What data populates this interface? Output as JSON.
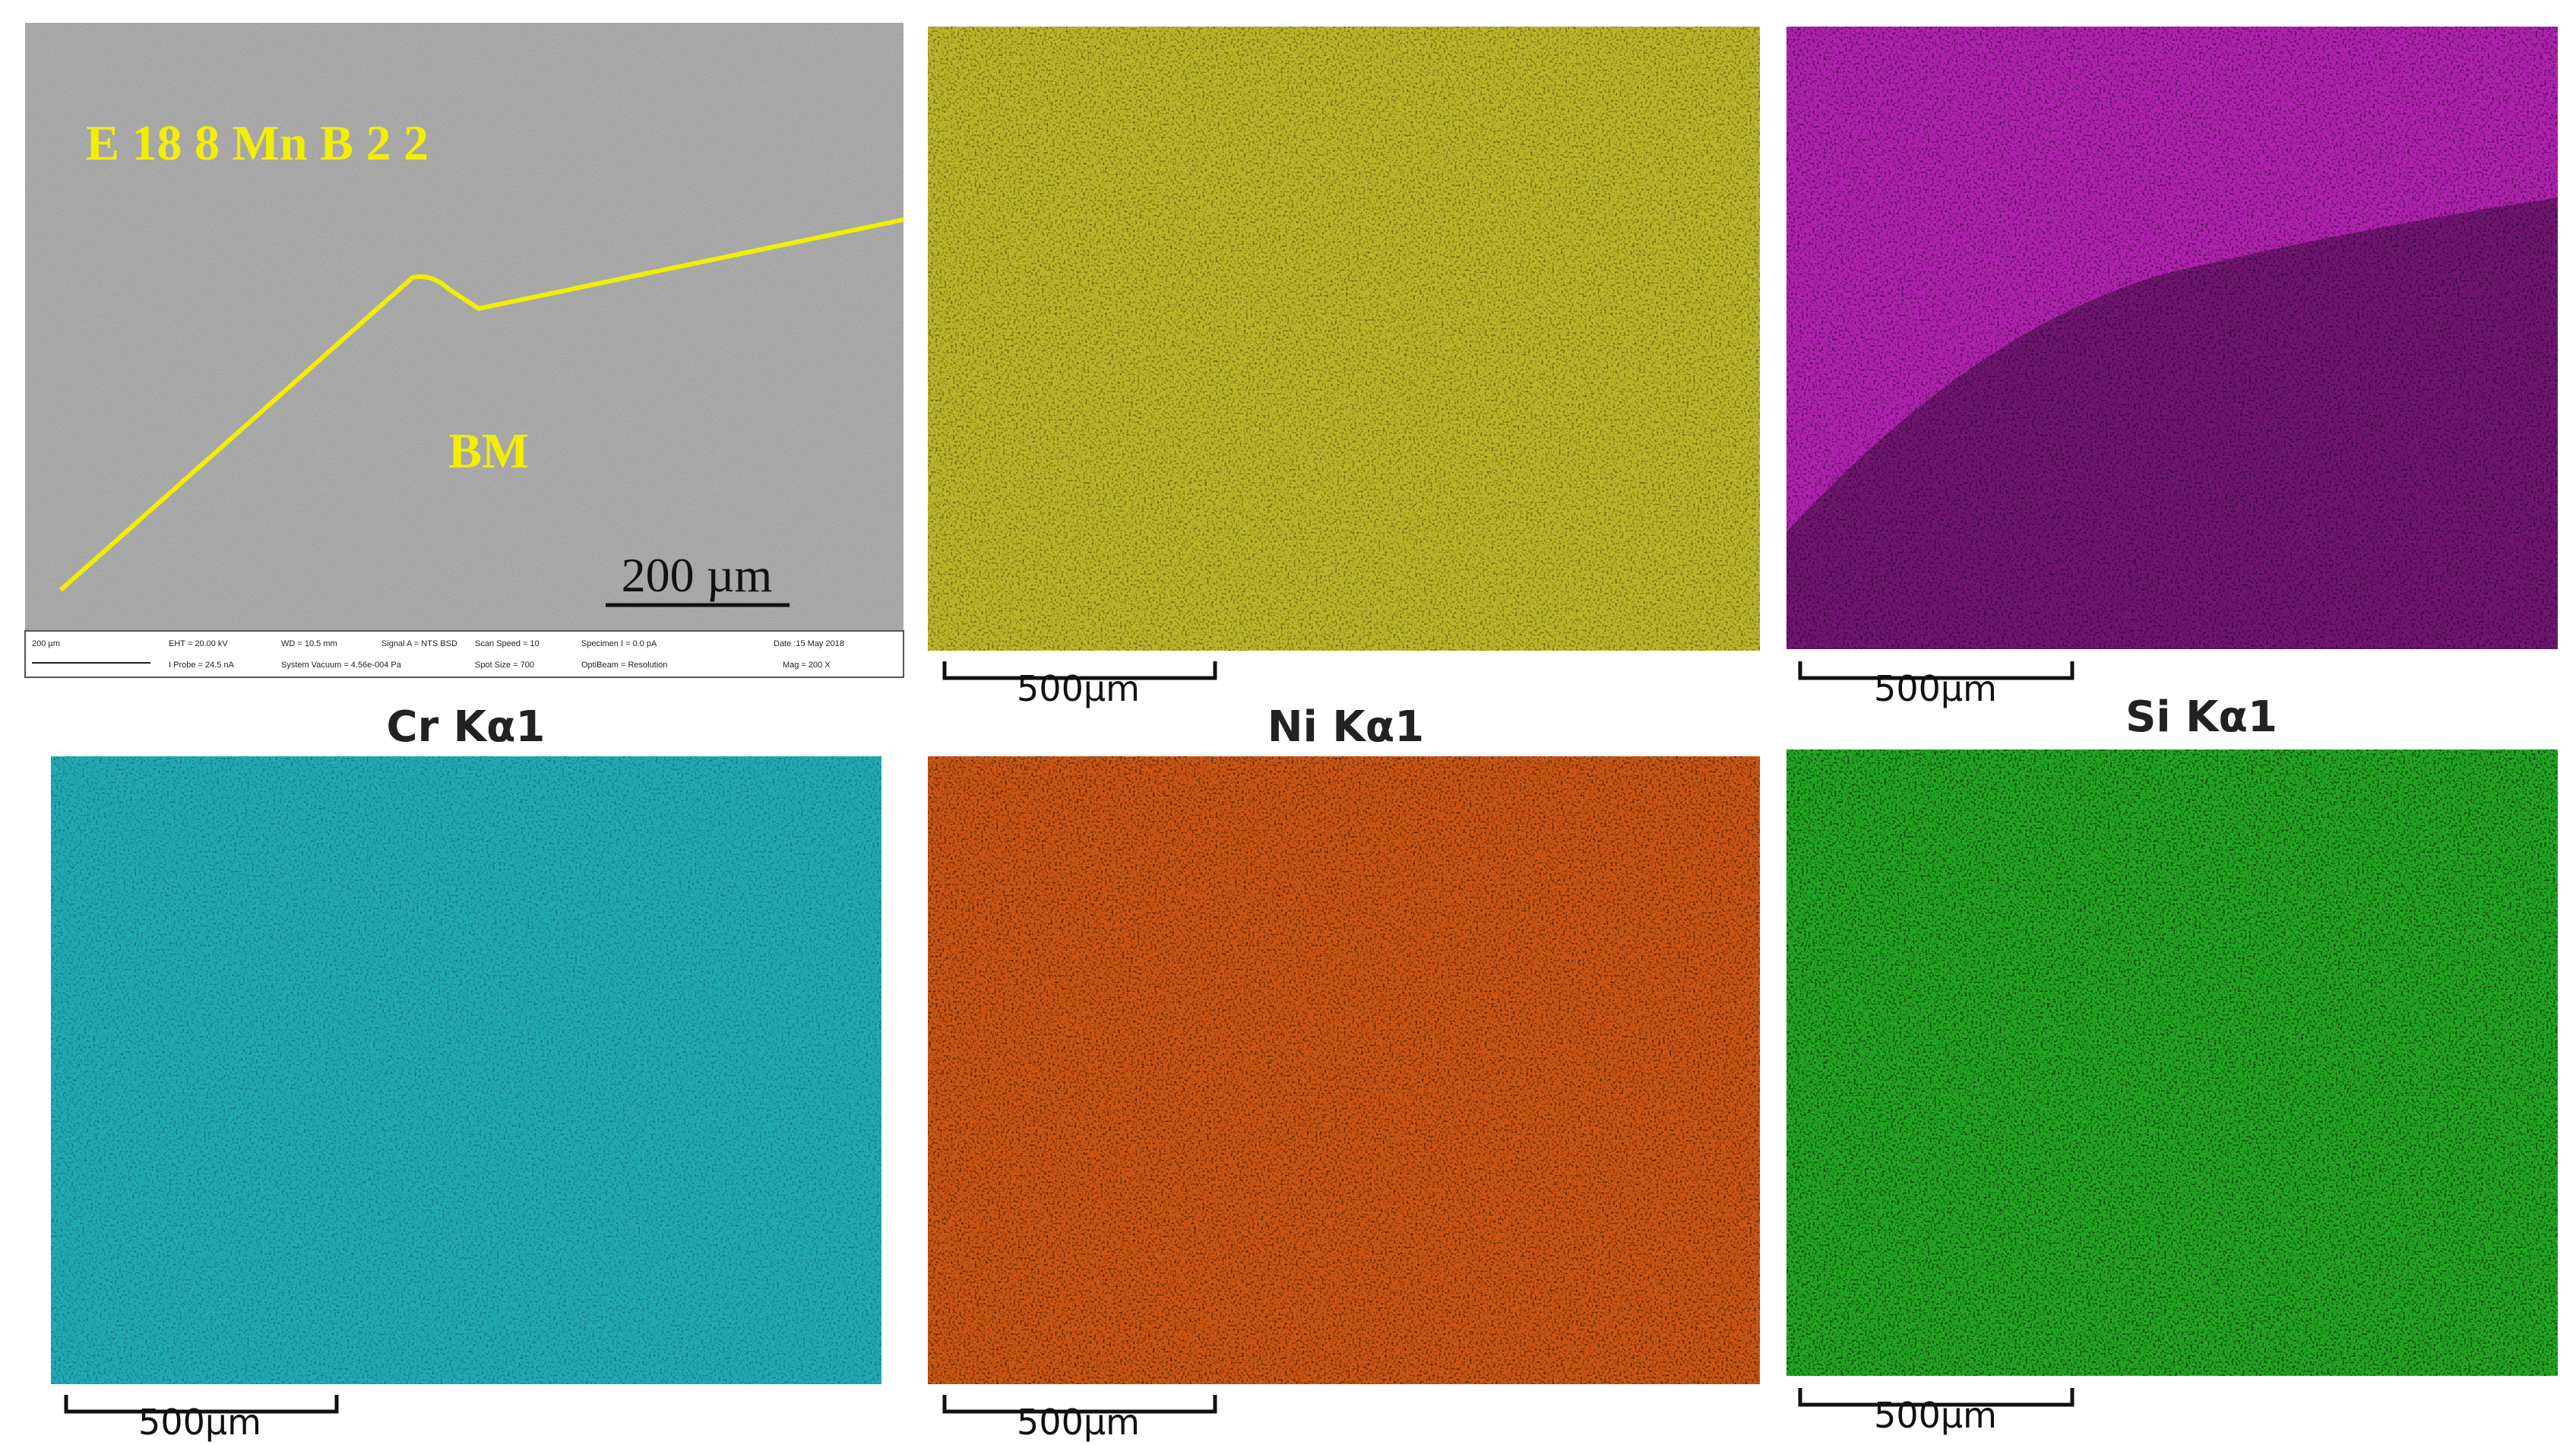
{
  "sem_panel": {
    "alloy_label": "E 18 8 Mn B 2 2",
    "region_label": "BM",
    "scale_label": "200 µm",
    "info_strip": [
      "200 µm",
      "EHT = 20.00 kV",
      "WD = 10.5 mm",
      "Signal A = NTS BSD",
      "Scan Speed = 10",
      "Specimen I = 0.0 pA",
      "Date :15 May 2018",
      "I Probe = 24.5 nA",
      "System Vacuum = 4.56e-004 Pa",
      "Spot Size = 700",
      "OptiBeam = Resolution",
      "Mag = 200 X"
    ]
  },
  "maps": [
    {
      "label": null,
      "scale_label": "500µm"
    },
    {
      "label": null,
      "scale_label": "500µm"
    },
    {
      "label": "Cr Kα1",
      "scale_label": "500µm"
    },
    {
      "label": "Ni Kα1",
      "scale_label": "500µm"
    },
    {
      "label": "Si Kα1",
      "scale_label": "500µm"
    }
  ]
}
